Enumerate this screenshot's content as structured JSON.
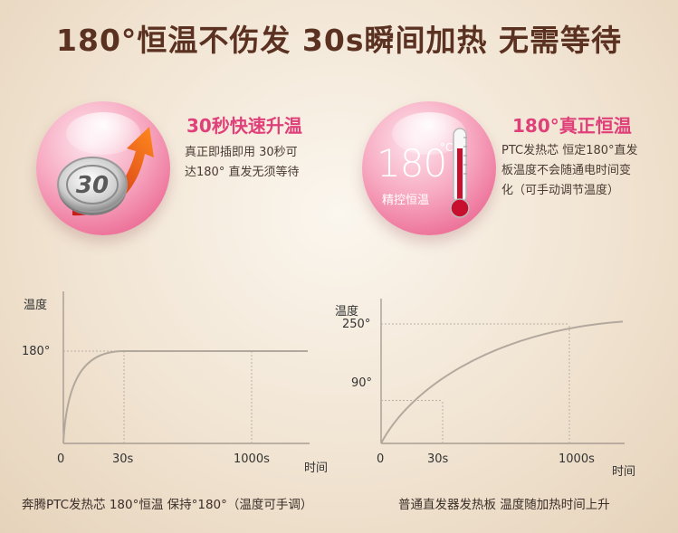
{
  "headline": "180°恒温不伤发  30s瞬间加热  无需等待",
  "feature_left": {
    "title": "30秒快速升温",
    "desc_line1": "真正即插即用 30秒可",
    "desc_line2": "达180° 直发无须等待",
    "coin_label": "30"
  },
  "feature_right": {
    "title": "180°真正恒温",
    "desc_line1": "PTC发热芯 恒定180°直发",
    "desc_line2": "板温度不会随通电时间变",
    "desc_line3": "化（可手动调节温度）",
    "sphere_number": "180",
    "sphere_unit": "°C",
    "sphere_caption": "精控恒温"
  },
  "chart_data": [
    {
      "type": "line",
      "ylabel": "温度",
      "xlabel": "时间",
      "origin_label": "0",
      "xticks": [
        {
          "value": 30,
          "label": "30s"
        },
        {
          "value": 1000,
          "label": "1000s"
        }
      ],
      "yticks": [
        {
          "value": 180,
          "label": "180°"
        }
      ],
      "ylim": [
        0,
        250
      ],
      "series": [
        {
          "x": [
            0,
            5,
            10,
            20,
            30,
            1000
          ],
          "y": [
            0,
            105,
            150,
            175,
            180,
            180
          ]
        }
      ],
      "caption": "奔腾PTC发热芯 180°恒温 保持°180°（温度可手调）"
    },
    {
      "type": "line",
      "ylabel": "温度",
      "xlabel": "时间",
      "origin_label": "0",
      "xticks": [
        {
          "value": 30,
          "label": "30s"
        },
        {
          "value": 1000,
          "label": "1000s"
        }
      ],
      "yticks": [
        {
          "value": 250,
          "label": "250°"
        },
        {
          "value": 90,
          "label": "90°"
        }
      ],
      "ylim": [
        0,
        260
      ],
      "series": [
        {
          "x": [
            0,
            10,
            30,
            100,
            300,
            600,
            1000
          ],
          "y": [
            0,
            55,
            90,
            140,
            200,
            235,
            250
          ]
        }
      ],
      "caption": "普通直发器发热板 温度随加热时间上升"
    }
  ]
}
